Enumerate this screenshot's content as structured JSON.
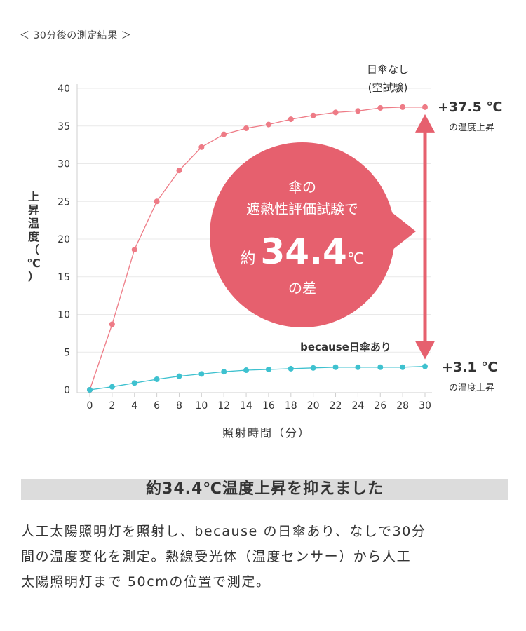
{
  "header": {
    "title": "＜ 30分後の測定結果 ＞"
  },
  "chart_data": {
    "type": "line",
    "xlabel": "照射時間（分）",
    "ylabel_chars": [
      "上",
      "昇",
      "温",
      "度",
      "（",
      "℃",
      "）"
    ],
    "x": [
      0,
      2,
      4,
      6,
      8,
      10,
      12,
      14,
      16,
      18,
      20,
      22,
      24,
      26,
      28,
      30
    ],
    "xlim": [
      0,
      30
    ],
    "ylim": [
      0,
      40
    ],
    "yticks": [
      0,
      5,
      10,
      15,
      20,
      25,
      30,
      35,
      40
    ],
    "grid": true,
    "series": [
      {
        "label_lines": [
          "日傘なし",
          "(空試験)"
        ],
        "color": "#ee7b86",
        "values": [
          0,
          8.7,
          18.6,
          25.0,
          29.1,
          32.2,
          33.9,
          34.7,
          35.2,
          35.9,
          36.4,
          36.8,
          37.0,
          37.4,
          37.5,
          37.5
        ],
        "end_value_label": "+37.5 ℃",
        "end_sub_label": "の温度上昇"
      },
      {
        "label_lines": [
          "because日傘あり"
        ],
        "color": "#3ec1cf",
        "values": [
          0,
          0.4,
          0.9,
          1.4,
          1.8,
          2.1,
          2.4,
          2.6,
          2.7,
          2.8,
          2.9,
          3.0,
          3.0,
          3.0,
          3.0,
          3.1
        ],
        "end_value_label": "+3.1 ℃",
        "end_sub_label": "の温度上昇"
      }
    ],
    "callout": {
      "line1": "傘の",
      "line2": "遮熱性評価試験で",
      "prefix": "約",
      "number": "34.4",
      "unit": "℃",
      "line4": "の差",
      "color": "#e6606e"
    }
  },
  "summary": {
    "heading": "約34.4℃温度上昇を抑えました",
    "lines": [
      "人工太陽照明灯を照射し、because の日傘あり、なしで30分",
      "間の温度変化を測定。熱線受光体（温度センサー）から人工",
      "太陽照明灯まで 50cmの位置で測定。"
    ]
  }
}
